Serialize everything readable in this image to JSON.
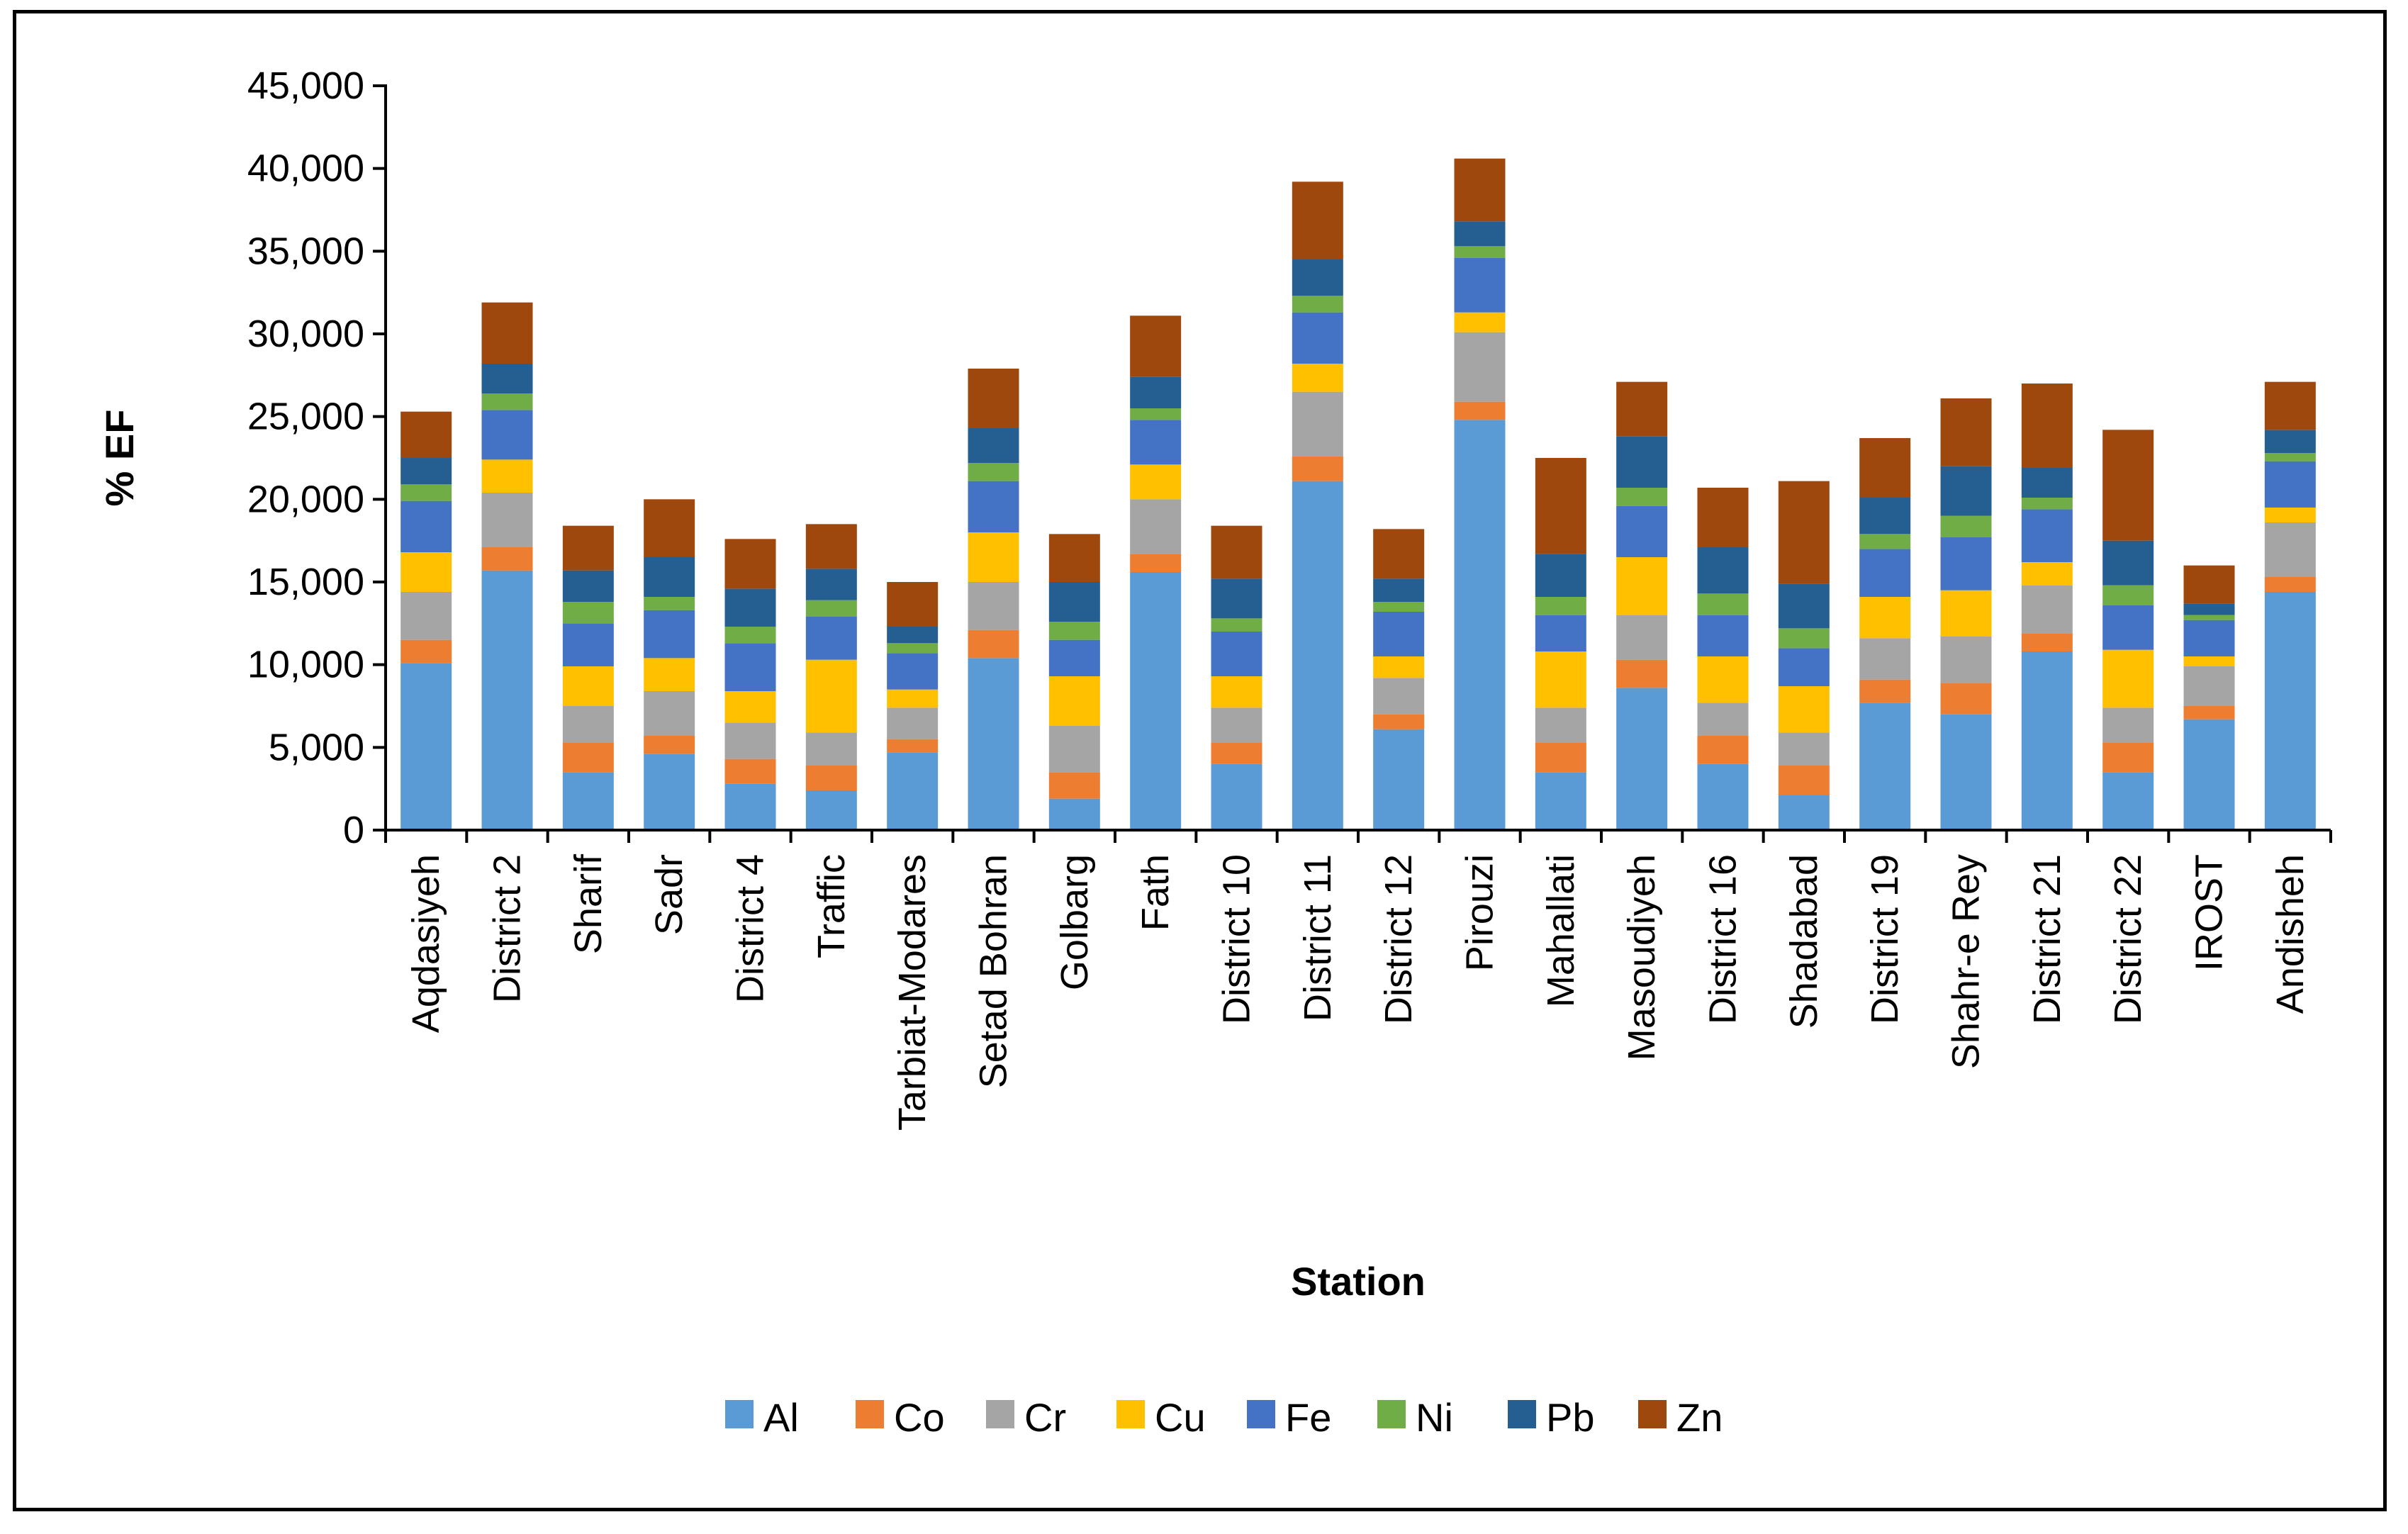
{
  "chart_data": {
    "type": "bar",
    "stacked": true,
    "title": "",
    "xlabel": "Station",
    "ylabel": "% EF",
    "ylim": [
      0,
      45000
    ],
    "yticks": [
      "0",
      "5,000",
      "10,000",
      "15,000",
      "20,000",
      "25,000",
      "30,000",
      "35,000",
      "40,000",
      "45,000"
    ],
    "ytick_values": [
      0,
      5000,
      10000,
      15000,
      20000,
      25000,
      30000,
      35000,
      40000,
      45000
    ],
    "legend_position": "bottom",
    "categories": [
      "Aqdasiyeh",
      "District 2",
      "Sharif",
      "Sadr",
      "District 4",
      "Traffic",
      "Tarbiat-Modares",
      "Setad Bohran",
      "Golbarg",
      "Fath",
      "District 10",
      "District 11",
      "District 12",
      "Pirouzi",
      "Mahallati",
      "Masoudiyeh",
      "District 16",
      "Shadabad",
      "District 19",
      "Shahr-e Rey",
      "District 21",
      "District 22",
      "IROST",
      "Andisheh"
    ],
    "series": [
      {
        "name": "Al",
        "color": "#5B9BD5",
        "values": [
          10100,
          15700,
          3500,
          4600,
          2800,
          2400,
          4700,
          10400,
          1900,
          15600,
          4000,
          21100,
          6100,
          24800,
          3500,
          8600,
          4000,
          2100,
          7700,
          7000,
          10800,
          3500,
          6700,
          14400
        ]
      },
      {
        "name": "Co",
        "color": "#ED7D31",
        "values": [
          1400,
          1400,
          1800,
          1100,
          1500,
          1500,
          800,
          1700,
          1600,
          1100,
          1300,
          1500,
          900,
          1100,
          1800,
          1700,
          1700,
          1800,
          1400,
          1900,
          1100,
          1800,
          800,
          900
        ]
      },
      {
        "name": "Cr",
        "color": "#A5A5A5",
        "values": [
          2900,
          3300,
          2200,
          2700,
          2200,
          2000,
          1900,
          2900,
          2800,
          3300,
          2100,
          3900,
          2200,
          4200,
          2100,
          2700,
          2000,
          2000,
          2500,
          2800,
          2900,
          2100,
          2400,
          3300
        ]
      },
      {
        "name": "Cu",
        "color": "#FFC000",
        "values": [
          2400,
          2000,
          2400,
          2000,
          1900,
          4400,
          1100,
          3000,
          3000,
          2100,
          1900,
          1700,
          1300,
          1200,
          3400,
          3500,
          2800,
          2800,
          2500,
          2800,
          1400,
          3500,
          600,
          900
        ]
      },
      {
        "name": "Fe",
        "color": "#4472C4",
        "values": [
          3100,
          3000,
          2600,
          2900,
          2900,
          2600,
          2200,
          3100,
          2200,
          2700,
          2700,
          3100,
          2700,
          3300,
          2200,
          3100,
          2500,
          2300,
          2900,
          3200,
          3200,
          2700,
          2200,
          2800
        ]
      },
      {
        "name": "Ni",
        "color": "#70AD47",
        "values": [
          1000,
          1000,
          1300,
          800,
          1000,
          1000,
          600,
          1100,
          1100,
          700,
          800,
          1000,
          600,
          700,
          1100,
          1100,
          1300,
          1200,
          900,
          1300,
          700,
          1200,
          300,
          500
        ]
      },
      {
        "name": "Pb",
        "color": "#255E91",
        "values": [
          1600,
          1800,
          1900,
          2400,
          2300,
          1900,
          1000,
          2100,
          2400,
          1900,
          2400,
          2200,
          1400,
          1500,
          2600,
          3100,
          2800,
          2700,
          2200,
          3000,
          1800,
          2700,
          700,
          1400
        ]
      },
      {
        "name": "Zn",
        "color": "#9E480E",
        "values": [
          2800,
          3700,
          2700,
          3500,
          3000,
          2700,
          2700,
          3600,
          2900,
          3700,
          3200,
          4700,
          3000,
          3800,
          5800,
          3300,
          3600,
          6200,
          3600,
          4100,
          5100,
          6700,
          2300,
          2900
        ]
      }
    ]
  }
}
